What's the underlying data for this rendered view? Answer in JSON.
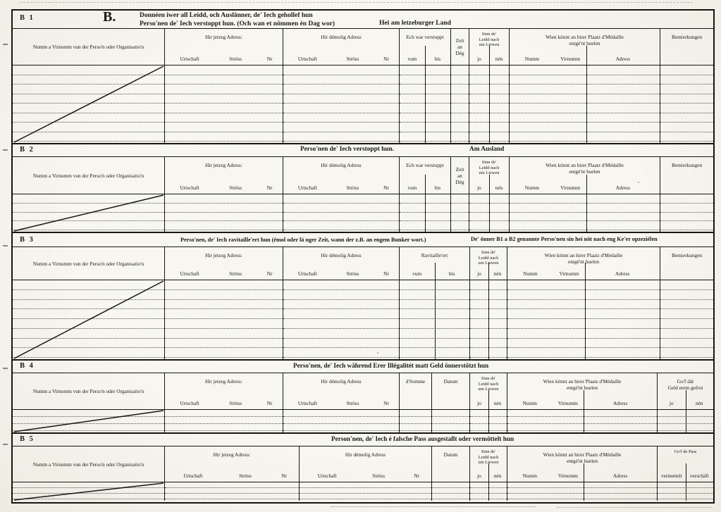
{
  "page": {
    "paper_color": "#f7f5ef",
    "ink_color": "#17150f"
  },
  "sections": [
    {
      "id": "B 1",
      "letter": "B.",
      "title_lines": [
        "Donnéen iwer all Leidd, och Auslänner, de' Iech gehollef hun",
        "Perso'nen de' Iech verstoppt hun. (Och wan et nömmen én Dag wor)"
      ],
      "subtitle": "Hei am letzeburger Land",
      "body_rows": 8,
      "name_column_crossed_out": true,
      "columns": [
        {
          "id": "name",
          "label_lines": [
            "Numm a Virnumm vun der Perso'n oder Organisatio'n"
          ]
        },
        {
          "id": "current-address",
          "label_lines": [
            "Hir jetzeg Adress:"
          ],
          "subs": [
            "Urtschaft",
            "Ströss",
            "Nr"
          ]
        },
        {
          "id": "former-address",
          "label_lines": [
            "Hir démolig Adress"
          ],
          "subs": [
            "Urtschaft",
            "Ströss",
            "Nr"
          ]
        },
        {
          "id": "hidden-period",
          "label_lines": [
            "Ech war verstoppt"
          ],
          "subs": [
            "vum",
            "bis"
          ]
        },
        {
          "id": "days-count",
          "label_lines": [
            "Zeit",
            "an",
            "Dég"
          ]
        },
        {
          "id": "alive",
          "label_lines": [
            "Sinn de'",
            "Leidd nach",
            "um Liewen"
          ],
          "subs": [
            "jo",
            "nén"
          ]
        },
        {
          "id": "medal-recipient",
          "label_lines": [
            "Wien könnt an hirer Plaatz d'Médaille",
            "entgé'nt huelen"
          ],
          "subs": [
            "Numm",
            "Virnumm",
            "Adress"
          ]
        },
        {
          "id": "remarks",
          "label_lines": [
            "Bemierkungen"
          ]
        }
      ]
    },
    {
      "id": "B 2",
      "title_lines": [
        "Perso'nen de' Iech verstoppt hun."
      ],
      "subtitle": "Am Ausland",
      "body_rows": 4,
      "name_column_crossed_out": true,
      "columns": [
        {
          "id": "name",
          "label_lines": [
            "Numm a Virnumm vun der Perso'n oder Organisatio'n"
          ]
        },
        {
          "id": "current-address",
          "label_lines": [
            "Hir jetzeg Adress:"
          ],
          "subs": [
            "Urtschaft",
            "Ströss",
            "Nr"
          ]
        },
        {
          "id": "former-address",
          "label_lines": [
            "Hir démolig Adress"
          ],
          "subs": [
            "Urtschaft",
            "Ströss",
            "Nr"
          ]
        },
        {
          "id": "hidden-period",
          "label_lines": [
            "Ech war verstoppt"
          ],
          "subs": [
            "vum",
            "bis"
          ]
        },
        {
          "id": "days-count",
          "label_lines": [
            "Zeit",
            "an",
            "Dég"
          ]
        },
        {
          "id": "alive",
          "label_lines": [
            "Sinn de'",
            "Leidd nach",
            "um Liewen"
          ],
          "subs": [
            "jo",
            "nén"
          ]
        },
        {
          "id": "medal-recipient",
          "label_lines": [
            "Wien könnt an hirer Plaatz d'Médaille",
            "entgé'nt huelen"
          ],
          "subs": [
            "Numm",
            "Virnumm",
            "Adress"
          ]
        },
        {
          "id": "remarks",
          "label_lines": [
            "Bemierkungen"
          ]
        }
      ]
    },
    {
      "id": "B 3",
      "title_lines": [
        "Perso'nen, de' Iech ravitaille'ert hun (émol oder lä nger Zeit, wann der z.B. an engem Bunker wort.)"
      ],
      "subtitle": "De' önner B1 a B2 genannte Perso'nen sin hei nöt nach eng Ke'er opzeziélen",
      "body_rows": 8,
      "name_column_crossed_out": true,
      "columns": [
        {
          "id": "name",
          "label_lines": [
            "Numm a Virnumm vun der Perso'n oder Organisatio'n"
          ]
        },
        {
          "id": "current-address",
          "label_lines": [
            "Hir jetzeg Adress:"
          ],
          "subs": [
            "Urtschaft",
            "Ströss",
            "Nr"
          ]
        },
        {
          "id": "former-address",
          "label_lines": [
            "Hir démolig Adress"
          ],
          "subs": [
            "Urtschaft",
            "Ströss",
            "Nr"
          ]
        },
        {
          "id": "supplied-period",
          "label_lines": [
            "Ravitaille'ert"
          ],
          "subs": [
            "vum",
            "bis"
          ]
        },
        {
          "id": "alive",
          "label_lines": [
            "Sinn de'",
            "Leidd nach",
            "um Liewen"
          ],
          "subs": [
            "jo",
            "nén"
          ]
        },
        {
          "id": "medal-recipient",
          "label_lines": [
            "Wien könnt an hirer Plaatz d'Médaille",
            "entgé'nt huelen"
          ],
          "subs": [
            "Numm",
            "Virnumm",
            "Adress"
          ]
        },
        {
          "id": "remarks",
          "label_lines": [
            "Bemierkungen"
          ]
        }
      ]
    },
    {
      "id": "B 4",
      "title_lines": [
        "Perso'nen, de' Iech während Erer Illégalitét matt Geld önnerstötzt hun"
      ],
      "body_rows": 3,
      "name_column_crossed_out": true,
      "columns": [
        {
          "id": "name",
          "label_lines": [
            "Numm a Virnumm vun der Perso'n oder Organisatio'n"
          ]
        },
        {
          "id": "current-address",
          "label_lines": [
            "Hir jetzeg Adress:"
          ],
          "subs": [
            "Urtschaft",
            "Ströss",
            "Nr"
          ]
        },
        {
          "id": "former-address",
          "label_lines": [
            "Hir démolig Adress"
          ],
          "subs": [
            "Urtschaft",
            "Ströss",
            "Nr"
          ]
        },
        {
          "id": "sum",
          "label_lines": [
            "d'Somme"
          ]
        },
        {
          "id": "date",
          "label_lines": [
            "Datum"
          ]
        },
        {
          "id": "alive",
          "label_lines": [
            "Sinn de'",
            "Leidd nach",
            "um Liewen"
          ],
          "subs": [
            "jo",
            "nén"
          ]
        },
        {
          "id": "medal-recipient",
          "label_lines": [
            "Wien könnt an hirer Plaatz d'Médaille",
            "entgé'nt huelen"
          ],
          "subs": [
            "Numm",
            "Virnumm",
            "Adress"
          ]
        },
        {
          "id": "money-returned",
          "label_lines": [
            "Go'f dät",
            "Geld erem gefrot"
          ],
          "subs": [
            "jo",
            "nén"
          ]
        }
      ]
    },
    {
      "id": "B 5",
      "title_lines": [
        "Person'nen, de' Iech é falsche Pass ausgestallt oder vermöttelt hun"
      ],
      "body_rows": 3,
      "name_column_crossed_out": true,
      "columns": [
        {
          "id": "name",
          "label_lines": [
            "Numm a Virnumm vun der Perso'n oder Organisatio'n"
          ]
        },
        {
          "id": "current-address",
          "label_lines": [
            "Hir jetzeg Adress:"
          ],
          "subs": [
            "Urtschaft",
            "Ströss",
            "Nr"
          ]
        },
        {
          "id": "former-address",
          "label_lines": [
            "Hir démolig Adress"
          ],
          "subs": [
            "Urtschaft",
            "Ströss",
            "Nr"
          ]
        },
        {
          "id": "date",
          "label_lines": [
            "Datum"
          ]
        },
        {
          "id": "alive",
          "label_lines": [
            "Sinn de'",
            "Leidd nach",
            "um Liewen"
          ],
          "subs": [
            "jo",
            "nén"
          ]
        },
        {
          "id": "medal-recipient",
          "label_lines": [
            "Wien könnt an hirer Plaatz d'Médaille",
            "entgé'nt huelen"
          ],
          "subs": [
            "Numm",
            "Virnumm",
            "Adress"
          ]
        },
        {
          "id": "pass-given",
          "label_lines": [
            "Go'f de Pass"
          ],
          "subs": [
            "vermettelt",
            "verschäft"
          ]
        }
      ]
    }
  ]
}
